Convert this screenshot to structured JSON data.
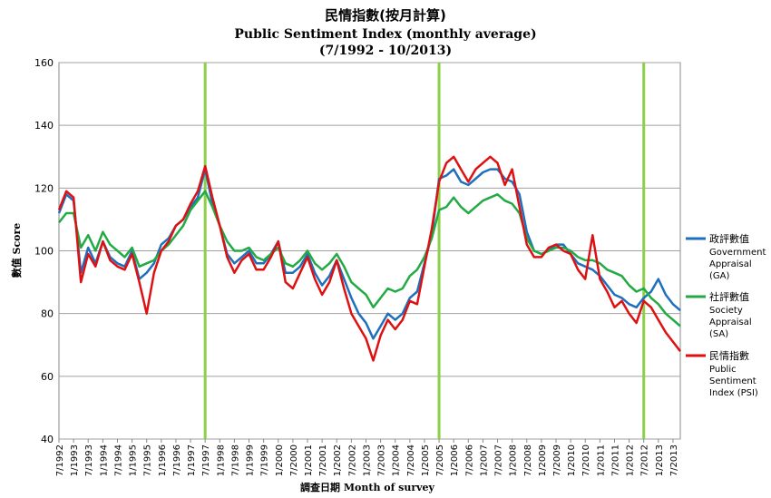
{
  "chart_data": {
    "type": "line",
    "title": "民情指數(按月計算)",
    "subtitle": "Public Sentiment Index (monthly average)",
    "period": "(7/1992 - 10/2013)",
    "xlabel": "調查日期  Month of survey",
    "ylabel": "數值 Score",
    "ylim": [
      40,
      160
    ],
    "yticks": [
      "40",
      "60",
      "80",
      "100",
      "120",
      "140",
      "160"
    ],
    "grid": true,
    "legend_position": "right",
    "x_range": [
      "7/1992",
      "10/2013"
    ],
    "xticks": [
      "7/1992",
      "1/1993",
      "7/1993",
      "1/1994",
      "7/1994",
      "1/1995",
      "7/1995",
      "1/1996",
      "7/1996",
      "1/1997",
      "7/1997",
      "1/1998",
      "7/1998",
      "1/1999",
      "7/1999",
      "1/2000",
      "7/2000",
      "1/2001",
      "7/2001",
      "1/2002",
      "7/2002",
      "1/2003",
      "7/2003",
      "1/2004",
      "7/2004",
      "1/2005",
      "7/2005",
      "1/2006",
      "7/2006",
      "1/2007",
      "7/2007",
      "1/2008",
      "7/2008",
      "1/2009",
      "7/2009",
      "1/2010",
      "7/2010",
      "1/2011",
      "7/2011",
      "1/2012",
      "7/2012",
      "1/2013",
      "7/2013"
    ],
    "markers": [
      "7/1997",
      "7/2005",
      "7/2012"
    ],
    "series": [
      {
        "name": "政評數值",
        "legend": [
          "Government",
          "Appraisal",
          "(GA)"
        ],
        "color": "#1f6fbf",
        "points": [
          [
            "7/1992",
            112
          ],
          [
            "10/1992",
            118
          ],
          [
            "1/1993",
            116
          ],
          [
            "4/1993",
            93
          ],
          [
            "7/1993",
            101
          ],
          [
            "10/1993",
            96
          ],
          [
            "1/1994",
            103
          ],
          [
            "4/1994",
            98
          ],
          [
            "7/1994",
            96
          ],
          [
            "10/1994",
            95
          ],
          [
            "1/1995",
            100
          ],
          [
            "4/1995",
            91
          ],
          [
            "7/1995",
            93
          ],
          [
            "10/1995",
            96
          ],
          [
            "1/1996",
            102
          ],
          [
            "4/1996",
            104
          ],
          [
            "7/1996",
            108
          ],
          [
            "10/1996",
            110
          ],
          [
            "1/1997",
            114
          ],
          [
            "4/1997",
            117
          ],
          [
            "7/1997",
            126
          ],
          [
            "10/1997",
            115
          ],
          [
            "1/1998",
            108
          ],
          [
            "4/1998",
            99
          ],
          [
            "7/1998",
            96
          ],
          [
            "10/1998",
            98
          ],
          [
            "1/1999",
            100
          ],
          [
            "4/1999",
            96
          ],
          [
            "7/1999",
            96
          ],
          [
            "10/1999",
            99
          ],
          [
            "1/2000",
            103
          ],
          [
            "4/2000",
            93
          ],
          [
            "7/2000",
            93
          ],
          [
            "10/2000",
            95
          ],
          [
            "1/2001",
            99
          ],
          [
            "4/2001",
            93
          ],
          [
            "7/2001",
            89
          ],
          [
            "10/2001",
            92
          ],
          [
            "1/2002",
            97
          ],
          [
            "4/2002",
            91
          ],
          [
            "7/2002",
            85
          ],
          [
            "10/2002",
            80
          ],
          [
            "1/2003",
            77
          ],
          [
            "4/2003",
            72
          ],
          [
            "7/2003",
            76
          ],
          [
            "10/2003",
            80
          ],
          [
            "1/2004",
            78
          ],
          [
            "4/2004",
            80
          ],
          [
            "7/2004",
            85
          ],
          [
            "10/2004",
            87
          ],
          [
            "1/2005",
            96
          ],
          [
            "4/2005",
            105
          ],
          [
            "7/2005",
            123
          ],
          [
            "10/2005",
            124
          ],
          [
            "1/2006",
            126
          ],
          [
            "4/2006",
            122
          ],
          [
            "7/2006",
            121
          ],
          [
            "10/2006",
            123
          ],
          [
            "1/2007",
            125
          ],
          [
            "4/2007",
            126
          ],
          [
            "7/2007",
            126
          ],
          [
            "10/2007",
            123
          ],
          [
            "1/2008",
            122
          ],
          [
            "4/2008",
            118
          ],
          [
            "7/2008",
            106
          ],
          [
            "10/2008",
            100
          ],
          [
            "1/2009",
            99
          ],
          [
            "4/2009",
            100
          ],
          [
            "7/2009",
            102
          ],
          [
            "10/2009",
            102
          ],
          [
            "1/2010",
            99
          ],
          [
            "4/2010",
            96
          ],
          [
            "7/2010",
            95
          ],
          [
            "10/2010",
            94
          ],
          [
            "1/2011",
            92
          ],
          [
            "4/2011",
            89
          ],
          [
            "7/2011",
            86
          ],
          [
            "10/2011",
            85
          ],
          [
            "1/2012",
            83
          ],
          [
            "4/2012",
            82
          ],
          [
            "7/2012",
            85
          ],
          [
            "10/2012",
            87
          ],
          [
            "1/2013",
            91
          ],
          [
            "4/2013",
            86
          ],
          [
            "7/2013",
            83
          ],
          [
            "10/2013",
            81
          ]
        ]
      },
      {
        "name": "社評數值",
        "legend": [
          "Society",
          "Appraisal",
          "(SA)"
        ],
        "color": "#22aa44",
        "points": [
          [
            "7/1992",
            109
          ],
          [
            "10/1992",
            112
          ],
          [
            "1/1993",
            112
          ],
          [
            "4/1993",
            101
          ],
          [
            "7/1993",
            105
          ],
          [
            "10/1993",
            100
          ],
          [
            "1/1994",
            106
          ],
          [
            "4/1994",
            102
          ],
          [
            "7/1994",
            100
          ],
          [
            "10/1994",
            98
          ],
          [
            "1/1995",
            101
          ],
          [
            "4/1995",
            95
          ],
          [
            "7/1995",
            96
          ],
          [
            "10/1995",
            97
          ],
          [
            "1/1996",
            100
          ],
          [
            "4/1996",
            102
          ],
          [
            "7/1996",
            105
          ],
          [
            "10/1996",
            108
          ],
          [
            "1/1997",
            113
          ],
          [
            "4/1997",
            116
          ],
          [
            "7/1997",
            119
          ],
          [
            "10/1997",
            114
          ],
          [
            "1/1998",
            108
          ],
          [
            "4/1998",
            103
          ],
          [
            "7/1998",
            100
          ],
          [
            "10/1998",
            100
          ],
          [
            "1/1999",
            101
          ],
          [
            "4/1999",
            98
          ],
          [
            "7/1999",
            97
          ],
          [
            "10/1999",
            99
          ],
          [
            "1/2000",
            101
          ],
          [
            "4/2000",
            96
          ],
          [
            "7/2000",
            95
          ],
          [
            "10/2000",
            97
          ],
          [
            "1/2001",
            100
          ],
          [
            "4/2001",
            96
          ],
          [
            "7/2001",
            94
          ],
          [
            "10/2001",
            96
          ],
          [
            "1/2002",
            99
          ],
          [
            "4/2002",
            95
          ],
          [
            "7/2002",
            90
          ],
          [
            "10/2002",
            88
          ],
          [
            "1/2003",
            86
          ],
          [
            "4/2003",
            82
          ],
          [
            "7/2003",
            85
          ],
          [
            "10/2003",
            88
          ],
          [
            "1/2004",
            87
          ],
          [
            "4/2004",
            88
          ],
          [
            "7/2004",
            92
          ],
          [
            "10/2004",
            94
          ],
          [
            "1/2005",
            98
          ],
          [
            "4/2005",
            104
          ],
          [
            "7/2005",
            113
          ],
          [
            "10/2005",
            114
          ],
          [
            "1/2006",
            117
          ],
          [
            "4/2006",
            114
          ],
          [
            "7/2006",
            112
          ],
          [
            "10/2006",
            114
          ],
          [
            "1/2007",
            116
          ],
          [
            "4/2007",
            117
          ],
          [
            "7/2007",
            118
          ],
          [
            "10/2007",
            116
          ],
          [
            "1/2008",
            115
          ],
          [
            "4/2008",
            112
          ],
          [
            "7/2008",
            104
          ],
          [
            "10/2008",
            100
          ],
          [
            "1/2009",
            99
          ],
          [
            "4/2009",
            100
          ],
          [
            "7/2009",
            101
          ],
          [
            "10/2009",
            101
          ],
          [
            "1/2010",
            100
          ],
          [
            "4/2010",
            98
          ],
          [
            "7/2010",
            97
          ],
          [
            "10/2010",
            97
          ],
          [
            "1/2011",
            96
          ],
          [
            "4/2011",
            94
          ],
          [
            "7/2011",
            93
          ],
          [
            "10/2011",
            92
          ],
          [
            "1/2012",
            89
          ],
          [
            "4/2012",
            87
          ],
          [
            "7/2012",
            88
          ],
          [
            "10/2012",
            85
          ],
          [
            "1/2013",
            83
          ],
          [
            "4/2013",
            80
          ],
          [
            "7/2013",
            78
          ],
          [
            "10/2013",
            76
          ]
        ]
      },
      {
        "name": "民情指數",
        "legend": [
          "Public",
          "Sentiment",
          "Index (PSI)"
        ],
        "color": "#dd1111",
        "points": [
          [
            "7/1992",
            113
          ],
          [
            "10/1992",
            119
          ],
          [
            "1/1993",
            117
          ],
          [
            "4/1993",
            90
          ],
          [
            "7/1993",
            99
          ],
          [
            "10/1993",
            95
          ],
          [
            "1/1994",
            103
          ],
          [
            "4/1994",
            97
          ],
          [
            "7/1994",
            95
          ],
          [
            "10/1994",
            94
          ],
          [
            "1/1995",
            99
          ],
          [
            "4/1995",
            90
          ],
          [
            "7/1995",
            80
          ],
          [
            "10/1995",
            93
          ],
          [
            "1/1996",
            100
          ],
          [
            "4/1996",
            103
          ],
          [
            "7/1996",
            108
          ],
          [
            "10/1996",
            110
          ],
          [
            "1/1997",
            115
          ],
          [
            "4/1997",
            119
          ],
          [
            "7/1997",
            127
          ],
          [
            "10/1997",
            117
          ],
          [
            "1/1998",
            108
          ],
          [
            "4/1998",
            98
          ],
          [
            "7/1998",
            93
          ],
          [
            "10/1998",
            97
          ],
          [
            "1/1999",
            99
          ],
          [
            "4/1999",
            94
          ],
          [
            "7/1999",
            94
          ],
          [
            "10/1999",
            98
          ],
          [
            "1/2000",
            103
          ],
          [
            "4/2000",
            90
          ],
          [
            "7/2000",
            88
          ],
          [
            "10/2000",
            93
          ],
          [
            "1/2001",
            98
          ],
          [
            "4/2001",
            91
          ],
          [
            "7/2001",
            86
          ],
          [
            "10/2001",
            90
          ],
          [
            "1/2002",
            97
          ],
          [
            "4/2002",
            88
          ],
          [
            "7/2002",
            80
          ],
          [
            "10/2002",
            76
          ],
          [
            "1/2003",
            72
          ],
          [
            "4/2003",
            65
          ],
          [
            "7/2003",
            73
          ],
          [
            "10/2003",
            78
          ],
          [
            "1/2004",
            75
          ],
          [
            "4/2004",
            78
          ],
          [
            "7/2004",
            84
          ],
          [
            "10/2004",
            83
          ],
          [
            "1/2005",
            95
          ],
          [
            "4/2005",
            107
          ],
          [
            "7/2005",
            122
          ],
          [
            "10/2005",
            128
          ],
          [
            "1/2006",
            130
          ],
          [
            "4/2006",
            126
          ],
          [
            "7/2006",
            122
          ],
          [
            "10/2006",
            126
          ],
          [
            "1/2007",
            128
          ],
          [
            "4/2007",
            130
          ],
          [
            "7/2007",
            128
          ],
          [
            "10/2007",
            121
          ],
          [
            "1/2008",
            126
          ],
          [
            "4/2008",
            114
          ],
          [
            "7/2008",
            102
          ],
          [
            "10/2008",
            98
          ],
          [
            "1/2009",
            98
          ],
          [
            "4/2009",
            101
          ],
          [
            "7/2009",
            102
          ],
          [
            "10/2009",
            100
          ],
          [
            "1/2010",
            99
          ],
          [
            "4/2010",
            94
          ],
          [
            "7/2010",
            91
          ],
          [
            "10/2010",
            105
          ],
          [
            "1/2011",
            91
          ],
          [
            "4/2011",
            87
          ],
          [
            "7/2011",
            82
          ],
          [
            "10/2011",
            84
          ],
          [
            "1/2012",
            80
          ],
          [
            "4/2012",
            77
          ],
          [
            "7/2012",
            84
          ],
          [
            "10/2012",
            82
          ],
          [
            "1/2013",
            78
          ],
          [
            "4/2013",
            74
          ],
          [
            "7/2013",
            71
          ],
          [
            "10/2013",
            68
          ]
        ]
      }
    ]
  }
}
